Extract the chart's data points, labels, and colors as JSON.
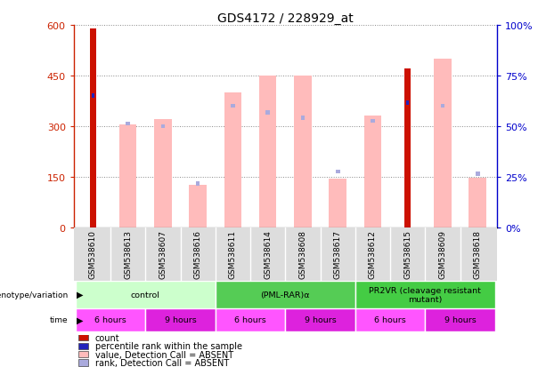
{
  "title": "GDS4172 / 228929_at",
  "samples": [
    "GSM538610",
    "GSM538613",
    "GSM538607",
    "GSM538616",
    "GSM538611",
    "GSM538614",
    "GSM538608",
    "GSM538617",
    "GSM538612",
    "GSM538615",
    "GSM538609",
    "GSM538618"
  ],
  "count_values": [
    590,
    0,
    0,
    0,
    0,
    0,
    0,
    0,
    0,
    470,
    0,
    0
  ],
  "percentile_values": [
    390,
    0,
    0,
    0,
    0,
    0,
    0,
    0,
    0,
    370,
    0,
    0
  ],
  "absent_value": [
    0,
    305,
    320,
    125,
    400,
    450,
    450,
    145,
    330,
    0,
    500,
    148
  ],
  "absent_rank_val": [
    0,
    308,
    300,
    130,
    360,
    340,
    325,
    165,
    315,
    0,
    360,
    158
  ],
  "ylim_left": [
    0,
    600
  ],
  "ylim_right": [
    0,
    100
  ],
  "yticks_left": [
    0,
    150,
    300,
    450,
    600
  ],
  "yticks_right": [
    0,
    25,
    50,
    75,
    100
  ],
  "ytick_labels_left": [
    "0",
    "150",
    "300",
    "450",
    "600"
  ],
  "ytick_labels_right": [
    "0%",
    "25%",
    "50%",
    "75%",
    "100%"
  ],
  "left_axis_color": "#cc2200",
  "right_axis_color": "#0000cc",
  "count_color": "#cc1100",
  "percentile_color": "#2222bb",
  "absent_value_color": "#ffbbbb",
  "absent_rank_color": "#aaaadd",
  "genotype_groups": [
    {
      "label": "control",
      "start": 0,
      "end": 3,
      "color": "#ccffcc"
    },
    {
      "label": "(PML-RAR)α",
      "start": 4,
      "end": 7,
      "color": "#55cc55"
    },
    {
      "label": "PR2VR (cleavage resistant\nmutant)",
      "start": 8,
      "end": 11,
      "color": "#44cc44"
    }
  ],
  "time_groups": [
    {
      "label": "6 hours",
      "start": 0,
      "end": 1,
      "color": "#ff55ff"
    },
    {
      "label": "9 hours",
      "start": 2,
      "end": 3,
      "color": "#dd22dd"
    },
    {
      "label": "6 hours",
      "start": 4,
      "end": 5,
      "color": "#ff55ff"
    },
    {
      "label": "9 hours",
      "start": 6,
      "end": 7,
      "color": "#dd22dd"
    },
    {
      "label": "6 hours",
      "start": 8,
      "end": 9,
      "color": "#ff55ff"
    },
    {
      "label": "9 hours",
      "start": 10,
      "end": 11,
      "color": "#dd22dd"
    }
  ],
  "legend_items": [
    {
      "label": "count",
      "color": "#cc1100"
    },
    {
      "label": "percentile rank within the sample",
      "color": "#2222bb"
    },
    {
      "label": "value, Detection Call = ABSENT",
      "color": "#ffbbbb"
    },
    {
      "label": "rank, Detection Call = ABSENT",
      "color": "#aaaadd"
    }
  ],
  "sample_bg_color": "#dddddd",
  "grid_color": "#888888",
  "bg_color": "#ffffff"
}
